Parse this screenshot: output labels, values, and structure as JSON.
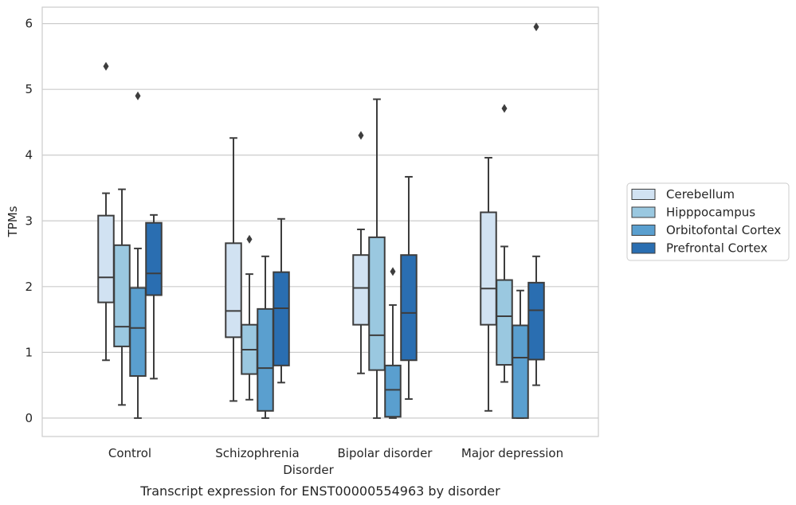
{
  "chart_data": {
    "type": "box",
    "title": "",
    "caption": "Transcript expression for ENST00000554963 by disorder",
    "xlabel": "Disorder",
    "ylabel": "TPMs",
    "ylim": [
      -0.28,
      6.25
    ],
    "yticks": [
      0,
      1,
      2,
      3,
      4,
      5,
      6
    ],
    "grid": "horizontal",
    "legend_position": "right",
    "categories": [
      "Control",
      "Schizophrenia",
      "Bipolar disorder",
      "Major depression"
    ],
    "series": [
      {
        "name": "Cerebellum",
        "color": "#d1e2f2",
        "boxes": [
          {
            "whislo": 0.88,
            "q1": 1.76,
            "med": 2.14,
            "q3": 3.08,
            "whishi": 3.42,
            "fliers": [
              5.35
            ]
          },
          {
            "whislo": 0.26,
            "q1": 1.23,
            "med": 1.63,
            "q3": 2.66,
            "whishi": 4.26,
            "fliers": []
          },
          {
            "whislo": 0.68,
            "q1": 1.42,
            "med": 1.98,
            "q3": 2.48,
            "whishi": 2.87,
            "fliers": [
              4.3
            ]
          },
          {
            "whislo": 0.11,
            "q1": 1.42,
            "med": 1.97,
            "q3": 3.13,
            "whishi": 3.96,
            "fliers": []
          }
        ]
      },
      {
        "name": "Hipppocampus",
        "color": "#9ac8e0",
        "boxes": [
          {
            "whislo": 0.2,
            "q1": 1.09,
            "med": 1.39,
            "q3": 2.63,
            "whishi": 3.48,
            "fliers": []
          },
          {
            "whislo": 0.28,
            "q1": 0.67,
            "med": 1.04,
            "q3": 1.42,
            "whishi": 2.19,
            "fliers": [
              2.72
            ]
          },
          {
            "whislo": 0.0,
            "q1": 0.73,
            "med": 1.26,
            "q3": 2.75,
            "whishi": 4.85,
            "fliers": []
          },
          {
            "whislo": 0.55,
            "q1": 0.81,
            "med": 1.55,
            "q3": 2.1,
            "whishi": 2.61,
            "fliers": [
              4.71
            ]
          }
        ]
      },
      {
        "name": "Orbitofontal Cortex",
        "color": "#5a9fcf",
        "boxes": [
          {
            "whislo": 0.0,
            "q1": 0.64,
            "med": 1.37,
            "q3": 1.98,
            "whishi": 2.58,
            "fliers": [
              4.9
            ]
          },
          {
            "whislo": 0.0,
            "q1": 0.11,
            "med": 0.76,
            "q3": 1.66,
            "whishi": 2.46,
            "fliers": []
          },
          {
            "whislo": 0.0,
            "q1": 0.02,
            "med": 0.43,
            "q3": 0.8,
            "whishi": 1.72,
            "fliers": [
              2.23
            ]
          },
          {
            "whislo": 0.0,
            "q1": 0.0,
            "med": 0.92,
            "q3": 1.41,
            "whishi": 1.94,
            "fliers": []
          }
        ]
      },
      {
        "name": "Prefrontal Cortex",
        "color": "#2a6eb1",
        "boxes": [
          {
            "whislo": 0.6,
            "q1": 1.87,
            "med": 2.2,
            "q3": 2.97,
            "whishi": 3.09,
            "fliers": []
          },
          {
            "whislo": 0.54,
            "q1": 0.8,
            "med": 1.67,
            "q3": 2.22,
            "whishi": 3.03,
            "fliers": []
          },
          {
            "whislo": 0.29,
            "q1": 0.88,
            "med": 1.6,
            "q3": 2.48,
            "whishi": 3.67,
            "fliers": []
          },
          {
            "whislo": 0.5,
            "q1": 0.89,
            "med": 1.64,
            "q3": 2.06,
            "whishi": 2.46,
            "fliers": [
              5.95
            ]
          }
        ]
      }
    ]
  },
  "colors": {
    "grid": "#cccccc",
    "frame": "#cccccc",
    "box_edge": "#3d3d3d",
    "text": "#262626"
  }
}
